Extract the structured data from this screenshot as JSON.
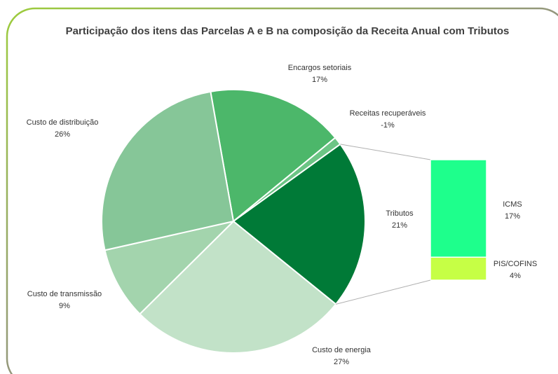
{
  "chart_data": {
    "type": "bar-of-pie",
    "title": "Participação dos itens das Parcelas A e B na composição da Receita Anual com Tributos",
    "categories": [
      "Encargos setoriais",
      "Receitas recuperáveis",
      "Tributos",
      "Custo de energia",
      "Custo de transmissão",
      "Custo de distribuição"
    ],
    "values": [
      17,
      -1,
      21,
      27,
      9,
      26
    ],
    "value_labels": [
      "17%",
      "-1%",
      "21%",
      "27%",
      "9%",
      "26%"
    ],
    "colors": [
      "#4cb76a",
      "#6cc585",
      "#007a37",
      "#c2e2c8",
      "#a3d4ad",
      "#86c698"
    ],
    "breakdown": {
      "of": "Tributos",
      "categories": [
        "ICMS",
        "PIS/COFINS"
      ],
      "values": [
        17,
        4
      ],
      "value_labels": [
        "17%",
        "4%"
      ],
      "colors": [
        "#1eff8c",
        "#c6ff45"
      ]
    }
  }
}
